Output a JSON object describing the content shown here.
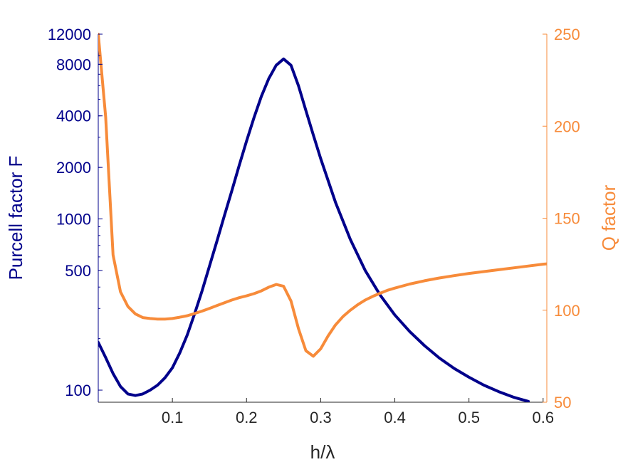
{
  "chart_data": {
    "type": "line",
    "xlabel": "h/λ",
    "xlim": [
      0.0,
      0.605
    ],
    "xticks": [
      0.1,
      0.2,
      0.3,
      0.4,
      0.5,
      0.6
    ],
    "xtick_labels": [
      "0.1",
      "0.2",
      "0.3",
      "0.4",
      "0.5",
      "0.6"
    ],
    "y_left": {
      "label": "Purcell factor F",
      "scale": "log",
      "lim": [
        85,
        12000
      ],
      "ticks": [
        100,
        500,
        1000,
        2000,
        4000,
        8000,
        12000
      ],
      "tick_labels": [
        "100",
        "500",
        "1000",
        "2000",
        "4000",
        "8000",
        "12000"
      ],
      "color": "#00008b"
    },
    "y_right": {
      "label": "Q factor",
      "scale": "linear",
      "lim": [
        50,
        250
      ],
      "ticks": [
        50,
        100,
        150,
        200,
        250
      ],
      "tick_labels": [
        "50",
        "100",
        "150",
        "200",
        "250"
      ],
      "color": "#f78b3a"
    },
    "series": [
      {
        "axis": "left",
        "color": "#00008b",
        "points": [
          [
            0.0,
            190
          ],
          [
            0.01,
            155
          ],
          [
            0.02,
            125
          ],
          [
            0.03,
            105
          ],
          [
            0.04,
            95
          ],
          [
            0.05,
            93
          ],
          [
            0.06,
            95
          ],
          [
            0.07,
            100
          ],
          [
            0.08,
            107
          ],
          [
            0.09,
            118
          ],
          [
            0.1,
            135
          ],
          [
            0.11,
            165
          ],
          [
            0.12,
            210
          ],
          [
            0.13,
            280
          ],
          [
            0.14,
            380
          ],
          [
            0.15,
            530
          ],
          [
            0.16,
            740
          ],
          [
            0.17,
            1040
          ],
          [
            0.18,
            1450
          ],
          [
            0.19,
            2050
          ],
          [
            0.2,
            2850
          ],
          [
            0.21,
            3900
          ],
          [
            0.22,
            5200
          ],
          [
            0.23,
            6600
          ],
          [
            0.24,
            7900
          ],
          [
            0.25,
            8600
          ],
          [
            0.26,
            7900
          ],
          [
            0.27,
            6000
          ],
          [
            0.28,
            4300
          ],
          [
            0.29,
            3100
          ],
          [
            0.3,
            2250
          ],
          [
            0.32,
            1250
          ],
          [
            0.34,
            760
          ],
          [
            0.36,
            500
          ],
          [
            0.38,
            360
          ],
          [
            0.4,
            275
          ],
          [
            0.42,
            220
          ],
          [
            0.44,
            182
          ],
          [
            0.46,
            154
          ],
          [
            0.48,
            134
          ],
          [
            0.5,
            119
          ],
          [
            0.52,
            107
          ],
          [
            0.54,
            98
          ],
          [
            0.56,
            91
          ],
          [
            0.58,
            86
          ]
        ]
      },
      {
        "axis": "right",
        "color": "#f78b3a",
        "points": [
          [
            0.0,
            250
          ],
          [
            0.01,
            205
          ],
          [
            0.02,
            130
          ],
          [
            0.03,
            110
          ],
          [
            0.04,
            102
          ],
          [
            0.05,
            98
          ],
          [
            0.06,
            96
          ],
          [
            0.07,
            95.5
          ],
          [
            0.08,
            95.2
          ],
          [
            0.09,
            95.2
          ],
          [
            0.1,
            95.5
          ],
          [
            0.11,
            96.2
          ],
          [
            0.12,
            97
          ],
          [
            0.13,
            98.2
          ],
          [
            0.14,
            99.5
          ],
          [
            0.15,
            101
          ],
          [
            0.16,
            102.5
          ],
          [
            0.17,
            104
          ],
          [
            0.18,
            105.5
          ],
          [
            0.19,
            106.8
          ],
          [
            0.2,
            107.8
          ],
          [
            0.21,
            109
          ],
          [
            0.22,
            110.5
          ],
          [
            0.23,
            112.5
          ],
          [
            0.24,
            114
          ],
          [
            0.25,
            113
          ],
          [
            0.26,
            105
          ],
          [
            0.27,
            90
          ],
          [
            0.28,
            78
          ],
          [
            0.29,
            75
          ],
          [
            0.3,
            79
          ],
          [
            0.31,
            86
          ],
          [
            0.32,
            92
          ],
          [
            0.33,
            96.5
          ],
          [
            0.34,
            100
          ],
          [
            0.35,
            103
          ],
          [
            0.36,
            105.5
          ],
          [
            0.37,
            107.5
          ],
          [
            0.38,
            109.2
          ],
          [
            0.39,
            110.8
          ],
          [
            0.4,
            112
          ],
          [
            0.42,
            114.2
          ],
          [
            0.44,
            116
          ],
          [
            0.46,
            117.5
          ],
          [
            0.48,
            118.8
          ],
          [
            0.5,
            120
          ],
          [
            0.52,
            121
          ],
          [
            0.54,
            122
          ],
          [
            0.56,
            123
          ],
          [
            0.58,
            124
          ],
          [
            0.6,
            125
          ],
          [
            0.605,
            125.2
          ]
        ]
      }
    ]
  }
}
